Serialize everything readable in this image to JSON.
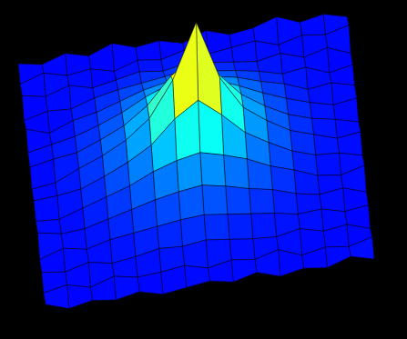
{
  "chart_data": {
    "type": "surface",
    "tick_labels": false,
    "z": [
      [
        8,
        5,
        10,
        6,
        12,
        7,
        9,
        5,
        11,
        6,
        8,
        13,
        7,
        10,
        6
      ],
      [
        6,
        11,
        7,
        9,
        5,
        10,
        8,
        12,
        7,
        9,
        11,
        6,
        10,
        8,
        12
      ],
      [
        10,
        7,
        12,
        8,
        11,
        14,
        12,
        15,
        13,
        11,
        9,
        12,
        7,
        11,
        5
      ],
      [
        5,
        9,
        8,
        13,
        16,
        18,
        20,
        22,
        19,
        17,
        14,
        10,
        12,
        6,
        9
      ],
      [
        11,
        6,
        12,
        15,
        20,
        25,
        28,
        30,
        27,
        24,
        19,
        15,
        9,
        11,
        7
      ],
      [
        7,
        10,
        13,
        18,
        24,
        32,
        38,
        42,
        36,
        30,
        23,
        17,
        12,
        8,
        10
      ],
      [
        9,
        12,
        14,
        20,
        27,
        38,
        55,
        66,
        52,
        36,
        26,
        18,
        13,
        10,
        6
      ],
      [
        6,
        8,
        15,
        21,
        29,
        41,
        64,
        100,
        61,
        39,
        28,
        19,
        14,
        9,
        11
      ],
      [
        10,
        11,
        13,
        19,
        26,
        35,
        50,
        60,
        48,
        34,
        25,
        17,
        12,
        11,
        7
      ],
      [
        8,
        7,
        12,
        17,
        22,
        29,
        34,
        37,
        33,
        28,
        21,
        16,
        10,
        8,
        12
      ],
      [
        12,
        9,
        10,
        14,
        18,
        22,
        25,
        27,
        24,
        20,
        17,
        12,
        9,
        11,
        6
      ],
      [
        6,
        11,
        8,
        12,
        14,
        16,
        18,
        19,
        17,
        15,
        13,
        10,
        11,
        7,
        9
      ],
      [
        9,
        7,
        11,
        8,
        10,
        13,
        12,
        14,
        12,
        10,
        9,
        12,
        8,
        10,
        5
      ],
      [
        7,
        10,
        6,
        11,
        8,
        9,
        11,
        7,
        10,
        8,
        12,
        6,
        9,
        7,
        11
      ],
      [
        11,
        6,
        9,
        7,
        10,
        6,
        8,
        10,
        7,
        11,
        6,
        9,
        7,
        12,
        8
      ]
    ]
  }
}
